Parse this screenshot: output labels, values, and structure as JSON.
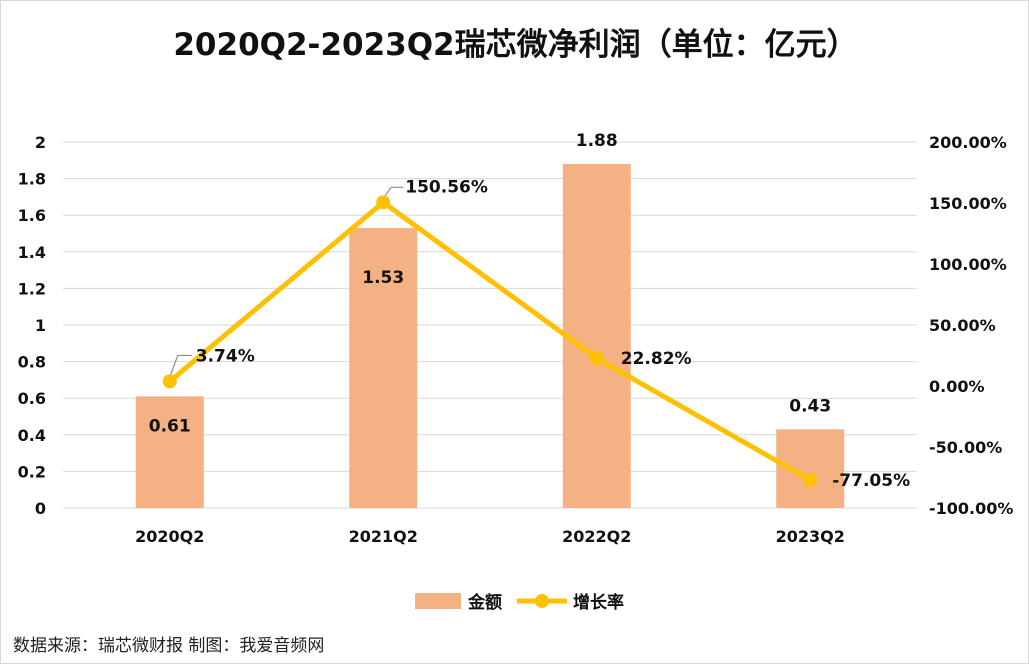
{
  "title": "2020Q2-2023Q2瑞芯微净利润（单位：亿元）",
  "source": "数据来源：瑞芯微财报 制图：我爱音频网",
  "colors": {
    "bar": "#f4b183",
    "line": "#ffc000",
    "grid": "#d9d9d9",
    "text": "#111111"
  },
  "chart_data": {
    "type": "bar",
    "categories": [
      "2020Q2",
      "2021Q2",
      "2022Q2",
      "2023Q2"
    ],
    "series": [
      {
        "name": "金额",
        "type": "bar",
        "axis": "left",
        "values": [
          0.61,
          1.53,
          1.88,
          0.43
        ],
        "labels": [
          "0.61",
          "1.53",
          "1.88",
          "0.43"
        ]
      },
      {
        "name": "增长率",
        "type": "line",
        "axis": "right",
        "values": [
          3.74,
          150.56,
          22.82,
          -77.05
        ],
        "labels": [
          "3.74%",
          "150.56%",
          "22.82%",
          "-77.05%"
        ]
      }
    ],
    "y_left": {
      "lim": [
        0,
        2
      ],
      "ticks": [
        "0",
        "0.2",
        "0.4",
        "0.6",
        "0.8",
        "1",
        "1.2",
        "1.4",
        "1.6",
        "1.8",
        "2"
      ]
    },
    "y_right": {
      "lim": [
        -100,
        200
      ],
      "ticks": [
        "-100.00%",
        "-50.00%",
        "0.00%",
        "50.00%",
        "100.00%",
        "150.00%",
        "200.00%"
      ]
    },
    "grid": true,
    "legend_position": "bottom"
  }
}
